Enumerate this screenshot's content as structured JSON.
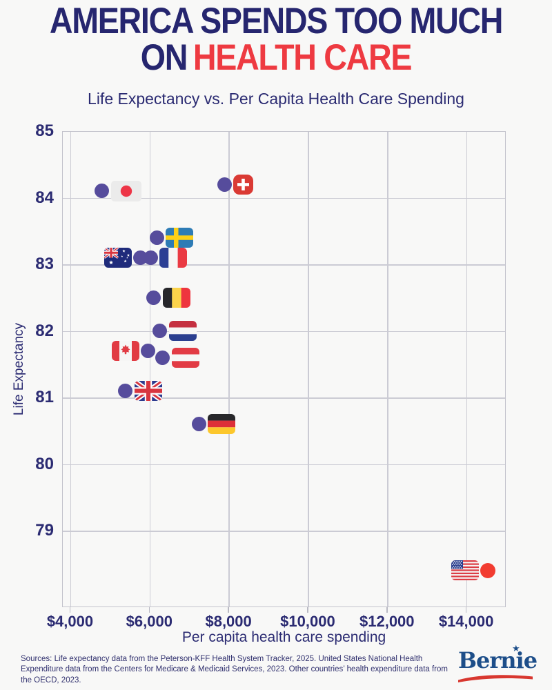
{
  "header": {
    "title_line1": "AMERICA SPENDS TOO MUCH",
    "title_line2_prefix": "ON",
    "title_line2_highlight": "HEALTH CARE",
    "subtitle": "Life Expectancy vs. Per Capita Health Care Spending"
  },
  "chart_data": {
    "type": "scatter",
    "title": "Life Expectancy vs. Per Capita Health Care Spending",
    "xlabel": "Per capita health care spending",
    "ylabel": "Life Expectancy",
    "x_ticks": [
      4000,
      6000,
      8000,
      10000,
      12000,
      14000
    ],
    "x_tick_labels": [
      "$4,000",
      "$6,000",
      "$8,000",
      "$10,000",
      "$12,000",
      "$14,000"
    ],
    "y_ticks": [
      85,
      84,
      83,
      82,
      81,
      80,
      79
    ],
    "xlim": [
      3800,
      15000
    ],
    "ylim": [
      77.85,
      85
    ],
    "grid": true,
    "points": [
      {
        "country": "Japan",
        "flag": "jp",
        "spending": 4810,
        "life_expectancy": 84.1,
        "flag_side": "right"
      },
      {
        "country": "Switzerland",
        "flag": "ch",
        "spending": 7900,
        "life_expectancy": 84.2,
        "flag_side": "right"
      },
      {
        "country": "Sweden",
        "flag": "se",
        "spending": 6190,
        "life_expectancy": 83.4,
        "flag_side": "right"
      },
      {
        "country": "Australia",
        "flag": "au",
        "spending": 5780,
        "life_expectancy": 83.1,
        "flag_side": "left"
      },
      {
        "country": "France",
        "flag": "fr",
        "spending": 6030,
        "life_expectancy": 83.1,
        "flag_side": "right"
      },
      {
        "country": "Belgium",
        "flag": "be",
        "spending": 6110,
        "life_expectancy": 82.5,
        "flag_side": "right"
      },
      {
        "country": "Netherlands",
        "flag": "nl",
        "spending": 6270,
        "life_expectancy": 82.0,
        "flag_side": "right"
      },
      {
        "country": "Canada",
        "flag": "ca",
        "spending": 5970,
        "life_expectancy": 81.7,
        "flag_side": "left"
      },
      {
        "country": "Austria",
        "flag": "at",
        "spending": 6340,
        "life_expectancy": 81.6,
        "flag_side": "right"
      },
      {
        "country": "United Kingdom",
        "flag": "gb",
        "spending": 5400,
        "life_expectancy": 81.1,
        "flag_side": "right"
      },
      {
        "country": "Germany",
        "flag": "de",
        "spending": 7250,
        "life_expectancy": 80.6,
        "flag_side": "right"
      },
      {
        "country": "United States",
        "flag": "us",
        "spending": 14550,
        "life_expectancy": 78.4,
        "flag_side": "left",
        "dot_color": "#f23c30",
        "dot_size": 22
      }
    ]
  },
  "footer": {
    "sources": "Sources: Life expectancy data from the Peterson-KFF Health System Tracker, 2025. United States National Health Expenditure data from the Centers for Medicare & Medicaid Services, 2023. Other countries’ health expenditure data from the OECD, 2023.",
    "logo_text": "Bernie"
  },
  "colors": {
    "navy": "#26266f",
    "red": "#ee3a41",
    "dot": "#564c9c",
    "us_dot": "#f23c30",
    "grid": "#cbcbd4",
    "bernie_blue": "#1d4e89",
    "bernie_red": "#d8372f"
  }
}
